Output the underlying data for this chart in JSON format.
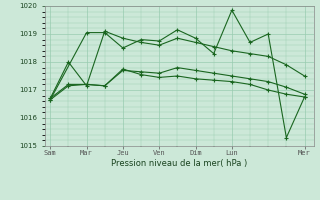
{
  "title": "",
  "xlabel": "Pression niveau de la mer( hPa )",
  "ylim": [
    1015,
    1020
  ],
  "yticks": [
    1015,
    1016,
    1017,
    1018,
    1019,
    1020
  ],
  "bg_color": "#cce8d8",
  "grid_color": "#99ccb0",
  "line_color": "#1a6620",
  "day_labels": [
    "Sam",
    "Mar",
    "Jeu",
    "Ven",
    "Dim",
    "Lun",
    "Mer"
  ],
  "day_positions": [
    0,
    2,
    4,
    6,
    8,
    10,
    14
  ],
  "xlim": [
    -0.3,
    14.5
  ],
  "series": [
    {
      "x": [
        0,
        1,
        2,
        3,
        4,
        5,
        6,
        7,
        8,
        9,
        10,
        11,
        12,
        13,
        14
      ],
      "y": [
        1016.7,
        1018.0,
        1017.15,
        1019.1,
        1018.85,
        1018.7,
        1018.6,
        1018.85,
        1018.7,
        1018.55,
        1018.4,
        1018.3,
        1018.2,
        1017.9,
        1017.5
      ]
    },
    {
      "x": [
        0,
        1,
        2,
        3,
        4,
        5,
        6,
        7,
        8,
        9,
        10,
        11,
        12,
        13,
        14
      ],
      "y": [
        1016.7,
        1017.2,
        1017.2,
        1017.15,
        1017.75,
        1017.55,
        1017.45,
        1017.5,
        1017.4,
        1017.35,
        1017.3,
        1017.2,
        1017.0,
        1016.85,
        1016.75
      ]
    },
    {
      "x": [
        0,
        1,
        2,
        3,
        4,
        5,
        6,
        7,
        8,
        9,
        10,
        11,
        12,
        13,
        14
      ],
      "y": [
        1016.65,
        1017.15,
        1017.2,
        1017.15,
        1017.7,
        1017.65,
        1017.6,
        1017.8,
        1017.7,
        1017.6,
        1017.5,
        1017.4,
        1017.3,
        1017.1,
        1016.85
      ]
    },
    {
      "x": [
        0,
        2,
        3,
        4,
        5,
        6,
        7,
        8,
        9,
        10,
        11,
        12,
        13,
        14
      ],
      "y": [
        1016.65,
        1019.05,
        1019.05,
        1018.5,
        1018.8,
        1018.75,
        1019.15,
        1018.85,
        1018.3,
        1019.85,
        1018.7,
        1019.0,
        1015.3,
        1016.75
      ]
    }
  ]
}
